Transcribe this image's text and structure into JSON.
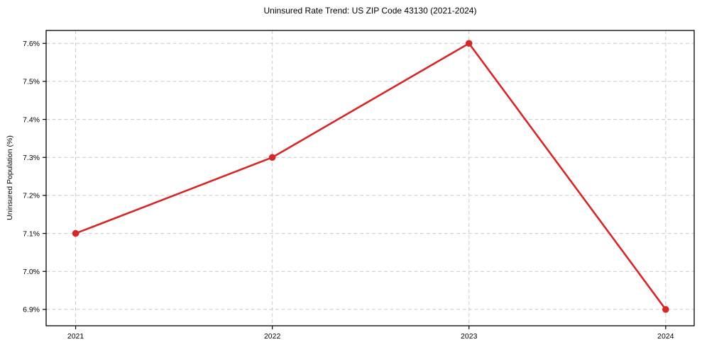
{
  "title": "Uninsured Rate Trend: US ZIP Code 43130 (2021-2024)",
  "chart_data": {
    "type": "line",
    "title": "Uninsured Rate Trend: US ZIP Code 43130 (2021-2024)",
    "xlabel": "",
    "ylabel": "Uninsured Population (%)",
    "x": [
      2021,
      2022,
      2023,
      2024
    ],
    "values": [
      7.1,
      7.3,
      7.6,
      6.9
    ],
    "xticks": [
      2021,
      2022,
      2023,
      2024
    ],
    "xticklabels": [
      "2021",
      "2022",
      "2023",
      "2024"
    ],
    "yticks": [
      6.9,
      7.0,
      7.1,
      7.2,
      7.3,
      7.4,
      7.5,
      7.6
    ],
    "yticklabels": [
      "6.9%",
      "7.0%",
      "7.1%",
      "7.2%",
      "7.3%",
      "7.4%",
      "7.5%",
      "7.6%"
    ],
    "xlim": [
      2020.85,
      2024.145
    ],
    "ylim": [
      6.857,
      7.634
    ],
    "grid": true,
    "grid_style": "dashed",
    "legend": false,
    "marker": "circle",
    "colors": {
      "line": "#d62728",
      "marker": "#d62728",
      "grid": "#c9c9c9",
      "spine": "#000000",
      "text": "#000000",
      "background": "#ffffff"
    }
  }
}
